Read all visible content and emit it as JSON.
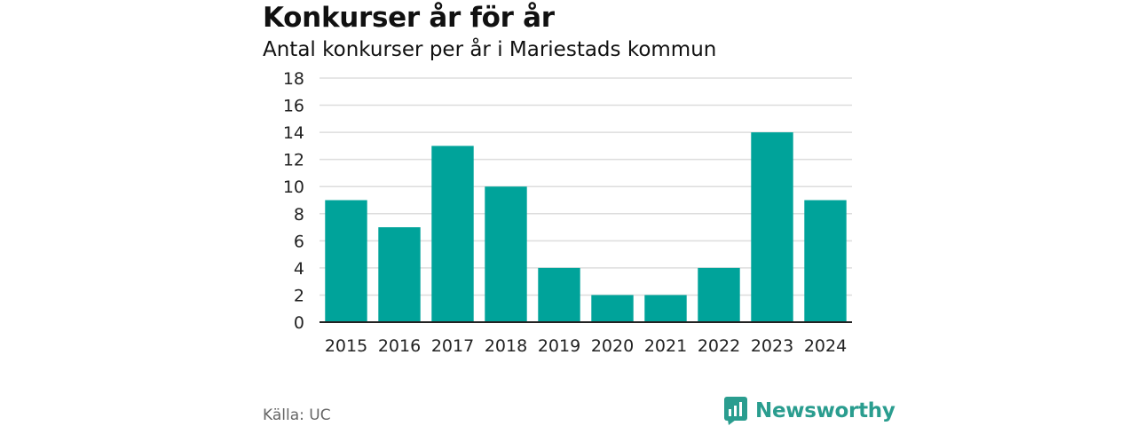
{
  "header": {
    "title": "Konkurser år för år",
    "subtitle": "Antal konkurser per år i Mariestads kommun"
  },
  "footer": {
    "source": "Källa: UC",
    "brand": "Newsworthy",
    "brand_icon": "newsworthy-logo-icon"
  },
  "colors": {
    "bar": "#00a39a",
    "grid": "#dddddd",
    "axis": "#222222",
    "brand": "#2a9d8f"
  },
  "chart_data": {
    "type": "bar",
    "categories": [
      "2015",
      "2016",
      "2017",
      "2018",
      "2019",
      "2020",
      "2021",
      "2022",
      "2023",
      "2024"
    ],
    "values": [
      9,
      7,
      13,
      10,
      4,
      2,
      2,
      4,
      14,
      9
    ],
    "yticks": [
      0,
      2,
      4,
      6,
      8,
      10,
      12,
      14,
      16,
      18
    ],
    "ylim": [
      0,
      18
    ],
    "grid": true,
    "legend": "none"
  }
}
